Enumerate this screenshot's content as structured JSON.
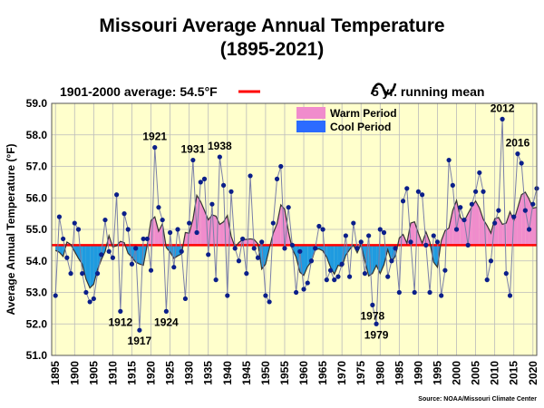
{
  "chart_data": {
    "type": "line",
    "title": "Missouri Average Annual Temperature",
    "subtitle": "(1895-2021)",
    "ylabel": "Average Annual Temperature (°F)",
    "xlabel": "",
    "ylim": [
      51.0,
      59.0
    ],
    "xlim": [
      1894,
      2021
    ],
    "y_ticks": [
      "51.0",
      "52.0",
      "53.0",
      "54.0",
      "55.0",
      "56.0",
      "57.0",
      "58.0",
      "59.0"
    ],
    "x_ticks": [
      1895,
      1900,
      1905,
      1910,
      1915,
      1920,
      1925,
      1930,
      1935,
      1940,
      1945,
      1950,
      1955,
      1960,
      1965,
      1970,
      1975,
      1980,
      1985,
      1990,
      1995,
      2000,
      2005,
      2010,
      2015,
      2020
    ],
    "grid": true,
    "baseline": {
      "label": "1901-2000 average: 54.5°F",
      "value": 54.5,
      "color": "#ff0000"
    },
    "running_mean_label": "5 yr. running mean",
    "legend": [
      {
        "name": "Warm Period",
        "color": "#f08ccc"
      },
      {
        "name": "Cool Period",
        "color": "#2b6bff"
      }
    ],
    "annotations": [
      {
        "year": 1912,
        "label": "1912"
      },
      {
        "year": 1917,
        "label": "1917"
      },
      {
        "year": 1921,
        "label": "1921"
      },
      {
        "year": 1924,
        "label": "1924"
      },
      {
        "year": 1931,
        "label": "1931"
      },
      {
        "year": 1938,
        "label": "1938"
      },
      {
        "year": 1978,
        "label": "1978"
      },
      {
        "year": 1979,
        "label": "1979"
      },
      {
        "year": 2012,
        "label": "2012"
      },
      {
        "year": 2016,
        "label": "2016"
      }
    ],
    "source": "Source: NOAA/Missouri Climate Center",
    "series": [
      {
        "start_year": 1895,
        "values": [
          52.9,
          55.4,
          54.7,
          54.1,
          53.6,
          55.2,
          55.0,
          53.6,
          53.0,
          52.7,
          52.8,
          53.6,
          54.2,
          55.3,
          54.3,
          54.1,
          56.1,
          52.4,
          55.5,
          55.0,
          53.9,
          54.4,
          51.8,
          54.7,
          54.7,
          53.7,
          57.6,
          55.7,
          55.3,
          52.4,
          54.9,
          53.8,
          55.0,
          54.3,
          52.8,
          55.2,
          57.2,
          54.9,
          56.5,
          56.6,
          54.2,
          55.8,
          53.4,
          57.3,
          56.4,
          52.9,
          56.2,
          54.4,
          54.0,
          54.7,
          53.6,
          56.7,
          54.4,
          54.1,
          54.6,
          52.9,
          52.7,
          55.2,
          56.6,
          57.0,
          54.4,
          55.7,
          54.5,
          53.0,
          54.3,
          53.1,
          53.3,
          54.0,
          54.4,
          55.1,
          55.0,
          53.4,
          53.7,
          53.4,
          53.5,
          53.9,
          54.8,
          53.5,
          55.2,
          54.4,
          54.6,
          53.6,
          54.8,
          52.6,
          52.0,
          55.0,
          54.9,
          53.5,
          54.0,
          54.4,
          53.0,
          55.9,
          56.3,
          54.6,
          53.0,
          56.2,
          56.1,
          54.5,
          53.0,
          54.8,
          54.6,
          52.9,
          53.7,
          57.2,
          56.4,
          55.0,
          55.7,
          55.3,
          54.5,
          55.8,
          56.2,
          56.8,
          56.2,
          53.4,
          54.0,
          55.2,
          55.6,
          58.5,
          53.6,
          52.9,
          55.4,
          57.4,
          57.1,
          55.6,
          55.0,
          55.8,
          56.3
        ]
      }
    ]
  }
}
